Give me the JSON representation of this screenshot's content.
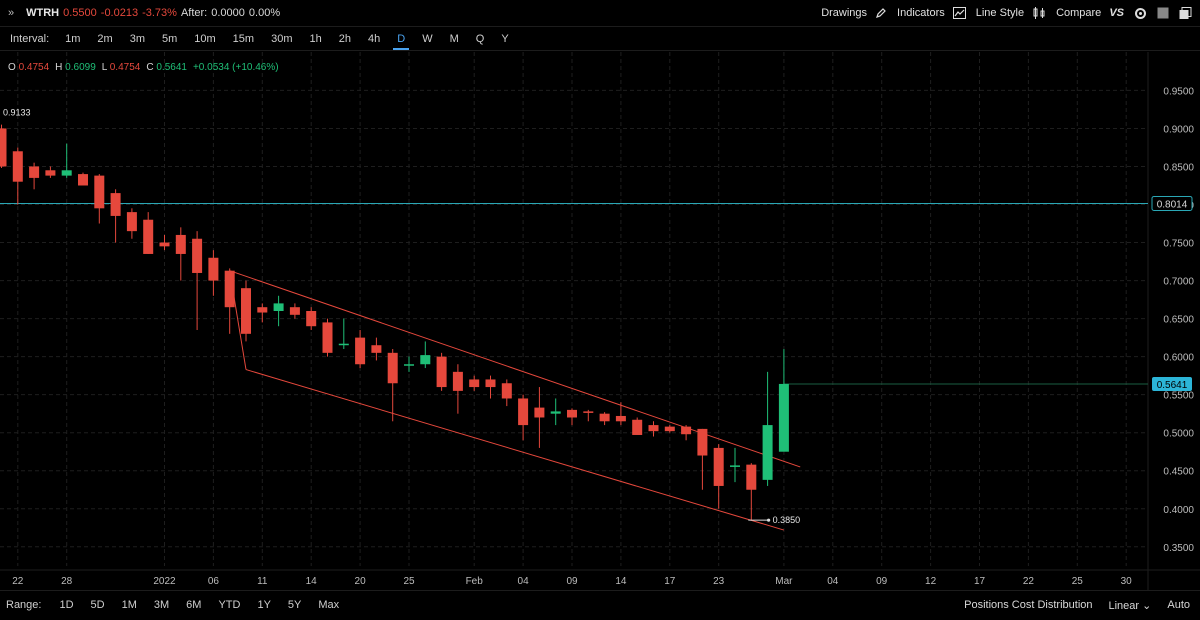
{
  "header": {
    "expand_icon": "double-chevron-right-icon",
    "symbol": "WTRH",
    "last": "0.5500",
    "change": "-0.0213",
    "change_pct": "-3.73%",
    "after_label": "After:",
    "after_value": "0.0000",
    "after_pct": "0.00%"
  },
  "toolbar": {
    "drawings": "Drawings",
    "indicators": "Indicators",
    "line_style": "Line Style",
    "compare": "Compare",
    "compare_vs": "VS"
  },
  "intervals": {
    "label": "Interval:",
    "items": [
      "1m",
      "2m",
      "3m",
      "5m",
      "10m",
      "15m",
      "30m",
      "1h",
      "2h",
      "4h",
      "D",
      "W",
      "M",
      "Q",
      "Y"
    ],
    "active": "D"
  },
  "ohlc": {
    "o_label": "O",
    "o": "0.4754",
    "h_label": "H",
    "h": "0.6099",
    "l_label": "L",
    "l": "0.4754",
    "c_label": "C",
    "c": "0.5641",
    "chg": "+0.0534 (+10.46%)"
  },
  "range": {
    "label": "Range:",
    "items": [
      "1D",
      "5D",
      "1M",
      "3M",
      "6M",
      "YTD",
      "1Y",
      "5Y",
      "Max"
    ],
    "positions": "Positions Cost Distribution",
    "scale": "Linear",
    "auto": "Auto"
  },
  "colors": {
    "up": "#1fbf77",
    "down": "#e5483c",
    "hline": "#2aa7b5",
    "channel": "#e5483c",
    "badge_current": "#2cb5d8"
  },
  "chart_data": {
    "type": "candlestick",
    "y_axis": {
      "min": 0.33,
      "max": 0.99,
      "ticks": [
        "0.9500",
        "0.9000",
        "0.8500",
        "0.8000",
        "0.7500",
        "0.7000",
        "0.6500",
        "0.6000",
        "0.5500",
        "0.5000",
        "0.4500",
        "0.4000",
        "0.3500"
      ],
      "tick_values": [
        0.95,
        0.9,
        0.85,
        0.8,
        0.75,
        0.7,
        0.65,
        0.6,
        0.55,
        0.5,
        0.45,
        0.4,
        0.35
      ]
    },
    "x_axis": {
      "labels": [
        "22",
        "28",
        "2022",
        "06",
        "11",
        "14",
        "20",
        "25",
        "Feb",
        "04",
        "09",
        "14",
        "17",
        "23",
        "Mar",
        "04",
        "09",
        "12",
        "17",
        "22",
        "25",
        "30"
      ],
      "label_index": [
        1,
        4,
        10,
        13,
        16,
        19,
        22,
        25,
        29,
        32,
        35,
        38,
        41,
        44,
        48,
        51,
        54,
        57,
        60,
        63,
        66,
        69
      ]
    },
    "hline": {
      "value": 0.8014,
      "label": "0.8014"
    },
    "current_price": {
      "value": 0.5641,
      "label": "0.5641"
    },
    "annotations": [
      {
        "text": "0.9133",
        "value": 0.9133
      },
      {
        "text": "0.3850",
        "value": 0.385
      }
    ],
    "channel": {
      "upper": [
        [
          14,
          0.713
        ],
        [
          49,
          0.455
        ]
      ],
      "lower": [
        [
          15,
          0.583
        ],
        [
          48,
          0.372
        ]
      ],
      "connector": [
        [
          14,
          0.713
        ],
        [
          15,
          0.583
        ]
      ]
    },
    "candles": [
      {
        "o": 0.9,
        "h": 0.905,
        "l": 0.848,
        "c": 0.85
      },
      {
        "o": 0.87,
        "h": 0.875,
        "l": 0.8,
        "c": 0.83
      },
      {
        "o": 0.85,
        "h": 0.855,
        "l": 0.82,
        "c": 0.835
      },
      {
        "o": 0.845,
        "h": 0.85,
        "l": 0.835,
        "c": 0.838
      },
      {
        "o": 0.838,
        "h": 0.88,
        "l": 0.835,
        "c": 0.845
      },
      {
        "o": 0.84,
        "h": 0.842,
        "l": 0.825,
        "c": 0.825
      },
      {
        "o": 0.838,
        "h": 0.84,
        "l": 0.775,
        "c": 0.795
      },
      {
        "o": 0.815,
        "h": 0.82,
        "l": 0.75,
        "c": 0.785
      },
      {
        "o": 0.79,
        "h": 0.795,
        "l": 0.755,
        "c": 0.765
      },
      {
        "o": 0.78,
        "h": 0.79,
        "l": 0.735,
        "c": 0.735
      },
      {
        "o": 0.75,
        "h": 0.76,
        "l": 0.74,
        "c": 0.745
      },
      {
        "o": 0.76,
        "h": 0.77,
        "l": 0.7,
        "c": 0.735
      },
      {
        "o": 0.755,
        "h": 0.765,
        "l": 0.635,
        "c": 0.71
      },
      {
        "o": 0.73,
        "h": 0.74,
        "l": 0.68,
        "c": 0.7
      },
      {
        "o": 0.713,
        "h": 0.716,
        "l": 0.63,
        "c": 0.665
      },
      {
        "o": 0.69,
        "h": 0.7,
        "l": 0.62,
        "c": 0.63
      },
      {
        "o": 0.665,
        "h": 0.67,
        "l": 0.645,
        "c": 0.658
      },
      {
        "o": 0.66,
        "h": 0.68,
        "l": 0.64,
        "c": 0.67
      },
      {
        "o": 0.665,
        "h": 0.67,
        "l": 0.65,
        "c": 0.655
      },
      {
        "o": 0.66,
        "h": 0.665,
        "l": 0.635,
        "c": 0.64
      },
      {
        "o": 0.645,
        "h": 0.65,
        "l": 0.6,
        "c": 0.605
      },
      {
        "o": 0.615,
        "h": 0.65,
        "l": 0.61,
        "c": 0.617
      },
      {
        "o": 0.625,
        "h": 0.635,
        "l": 0.585,
        "c": 0.59
      },
      {
        "o": 0.615,
        "h": 0.625,
        "l": 0.595,
        "c": 0.605
      },
      {
        "o": 0.605,
        "h": 0.61,
        "l": 0.515,
        "c": 0.565
      },
      {
        "o": 0.59,
        "h": 0.6,
        "l": 0.58,
        "c": 0.59
      },
      {
        "o": 0.59,
        "h": 0.62,
        "l": 0.585,
        "c": 0.602
      },
      {
        "o": 0.6,
        "h": 0.605,
        "l": 0.555,
        "c": 0.56
      },
      {
        "o": 0.58,
        "h": 0.59,
        "l": 0.525,
        "c": 0.555
      },
      {
        "o": 0.57,
        "h": 0.575,
        "l": 0.555,
        "c": 0.56
      },
      {
        "o": 0.57,
        "h": 0.575,
        "l": 0.545,
        "c": 0.56
      },
      {
        "o": 0.565,
        "h": 0.57,
        "l": 0.535,
        "c": 0.545
      },
      {
        "o": 0.545,
        "h": 0.55,
        "l": 0.49,
        "c": 0.51
      },
      {
        "o": 0.533,
        "h": 0.56,
        "l": 0.48,
        "c": 0.52
      },
      {
        "o": 0.525,
        "h": 0.545,
        "l": 0.51,
        "c": 0.528
      },
      {
        "o": 0.53,
        "h": 0.532,
        "l": 0.51,
        "c": 0.52
      },
      {
        "o": 0.528,
        "h": 0.53,
        "l": 0.515,
        "c": 0.527
      },
      {
        "o": 0.525,
        "h": 0.527,
        "l": 0.51,
        "c": 0.515
      },
      {
        "o": 0.522,
        "h": 0.54,
        "l": 0.51,
        "c": 0.515
      },
      {
        "o": 0.517,
        "h": 0.52,
        "l": 0.5,
        "c": 0.497
      },
      {
        "o": 0.51,
        "h": 0.515,
        "l": 0.495,
        "c": 0.502
      },
      {
        "o": 0.508,
        "h": 0.51,
        "l": 0.5,
        "c": 0.502
      },
      {
        "o": 0.508,
        "h": 0.51,
        "l": 0.49,
        "c": 0.498
      },
      {
        "o": 0.505,
        "h": 0.505,
        "l": 0.425,
        "c": 0.47
      },
      {
        "o": 0.48,
        "h": 0.485,
        "l": 0.4,
        "c": 0.43
      },
      {
        "o": 0.455,
        "h": 0.48,
        "l": 0.435,
        "c": 0.457
      },
      {
        "o": 0.458,
        "h": 0.46,
        "l": 0.385,
        "c": 0.425
      },
      {
        "o": 0.438,
        "h": 0.58,
        "l": 0.43,
        "c": 0.51
      },
      {
        "o": 0.475,
        "h": 0.6099,
        "l": 0.4754,
        "c": 0.5641
      }
    ]
  }
}
